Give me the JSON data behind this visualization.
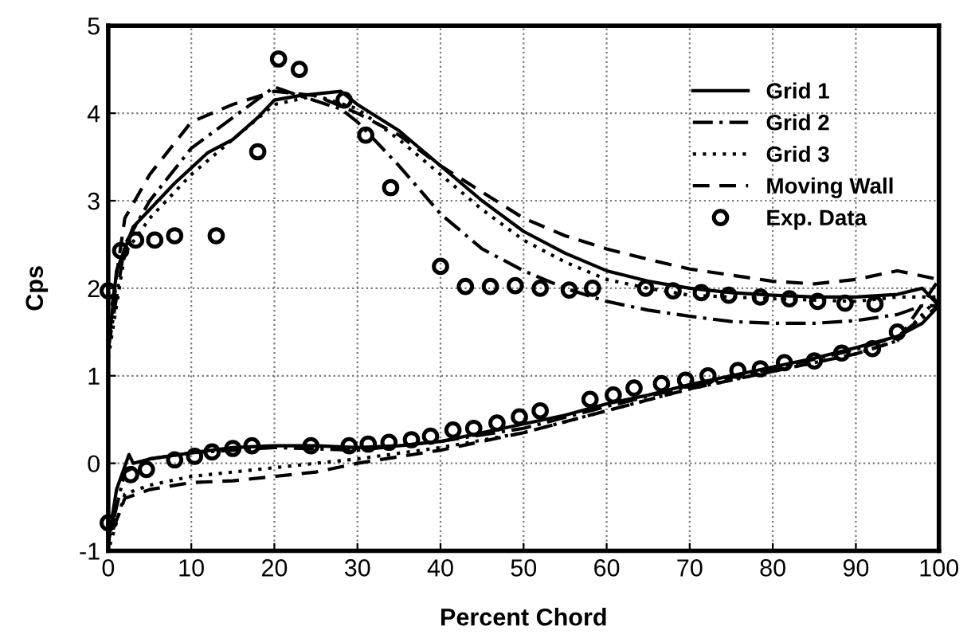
{
  "chart_data": {
    "type": "line",
    "xlabel": "Percent Chord",
    "ylabel": "Cps",
    "xlim": [
      0,
      100
    ],
    "ylim": [
      -1,
      5
    ],
    "xticks": [
      0,
      10,
      20,
      30,
      40,
      50,
      60,
      70,
      80,
      90,
      100
    ],
    "yticks": [
      -1,
      0,
      1,
      2,
      3,
      4,
      5
    ],
    "grid": true,
    "legend": "top right",
    "series": [
      {
        "name": "Grid 1",
        "color": "#000000",
        "line_style": "solid",
        "x": [
          0,
          1,
          3,
          5,
          8,
          12,
          15,
          18,
          20,
          23,
          28,
          30,
          35,
          40,
          45,
          50,
          55,
          60,
          65,
          70,
          75,
          80,
          85,
          90,
          95,
          98,
          100,
          98,
          95,
          90,
          85,
          80,
          75,
          70,
          65,
          60,
          55,
          50,
          45,
          40,
          35,
          30,
          25,
          20,
          15,
          10,
          5,
          3,
          2.5,
          1,
          0
        ],
        "values": [
          1.3,
          2.2,
          2.7,
          2.9,
          3.2,
          3.55,
          3.7,
          3.95,
          4.15,
          4.2,
          4.25,
          4.1,
          3.8,
          3.4,
          3.0,
          2.65,
          2.4,
          2.2,
          2.08,
          2.0,
          1.95,
          1.92,
          1.9,
          1.9,
          1.93,
          2.0,
          1.8,
          1.6,
          1.45,
          1.32,
          1.2,
          1.1,
          1.0,
          0.9,
          0.78,
          0.68,
          0.55,
          0.45,
          0.35,
          0.25,
          0.2,
          0.18,
          0.2,
          0.2,
          0.18,
          0.12,
          0.05,
          0.0,
          0.1,
          -0.3,
          -0.9
        ]
      },
      {
        "name": "Grid 2",
        "color": "#000000",
        "line_style": "dashdot",
        "x": [
          0,
          2,
          5,
          10,
          15,
          20,
          23,
          28,
          30,
          35,
          40,
          45,
          50,
          55,
          60,
          65,
          70,
          75,
          80,
          85,
          90,
          95,
          98,
          100,
          95,
          90,
          80,
          70,
          60,
          50,
          40,
          30,
          20,
          10,
          5,
          2,
          0
        ],
        "values": [
          1.3,
          2.5,
          3.0,
          3.6,
          3.95,
          4.3,
          4.2,
          4.05,
          3.9,
          3.4,
          2.85,
          2.45,
          2.2,
          2.0,
          1.85,
          1.75,
          1.68,
          1.62,
          1.6,
          1.6,
          1.63,
          1.7,
          1.8,
          1.8,
          1.45,
          1.3,
          1.08,
          0.88,
          0.65,
          0.4,
          0.25,
          0.15,
          0.18,
          0.12,
          0.05,
          -0.1,
          -0.9
        ]
      },
      {
        "name": "Grid 3",
        "color": "#000000",
        "line_style": "dotted",
        "x": [
          0,
          2,
          5,
          10,
          15,
          20,
          25,
          30,
          35,
          40,
          45,
          50,
          55,
          60,
          65,
          70,
          80,
          90,
          95,
          100,
          95,
          90,
          80,
          70,
          60,
          50,
          40,
          30,
          20,
          10,
          5,
          2,
          0
        ],
        "values": [
          1.2,
          2.4,
          2.8,
          3.3,
          3.7,
          4.1,
          4.2,
          4.05,
          3.7,
          3.3,
          2.9,
          2.55,
          2.3,
          2.1,
          2.0,
          1.92,
          1.88,
          1.85,
          1.9,
          1.9,
          1.4,
          1.25,
          1.05,
          0.85,
          0.6,
          0.35,
          0.18,
          0.05,
          -0.05,
          -0.15,
          -0.25,
          -0.35,
          -1.0
        ]
      },
      {
        "name": "Moving Wall",
        "color": "#000000",
        "line_style": "dashed",
        "x": [
          0,
          2,
          5,
          10,
          15,
          20,
          25,
          30,
          35,
          40,
          45,
          50,
          55,
          60,
          65,
          70,
          75,
          80,
          85,
          90,
          95,
          100,
          95,
          90,
          80,
          70,
          60,
          50,
          40,
          30,
          25,
          20,
          15,
          10,
          5,
          2,
          0
        ],
        "values": [
          1.5,
          2.8,
          3.3,
          3.9,
          4.1,
          4.25,
          4.2,
          4.0,
          3.75,
          3.4,
          3.1,
          2.8,
          2.6,
          2.45,
          2.33,
          2.22,
          2.15,
          2.08,
          2.05,
          2.1,
          2.2,
          2.1,
          1.4,
          1.25,
          1.05,
          0.85,
          0.6,
          0.35,
          0.15,
          0.0,
          -0.1,
          -0.15,
          -0.2,
          -0.22,
          -0.3,
          -0.4,
          -0.9
        ]
      },
      {
        "name": "Exp. Data",
        "type": "scatter",
        "marker": "circle",
        "color": "#000000",
        "x": [
          0,
          1.5,
          3.3,
          5.6,
          8,
          13,
          18,
          20.5,
          23,
          28.4,
          31,
          34,
          40,
          43,
          46,
          49,
          52,
          55.5,
          58.3,
          64.7,
          68,
          71.4,
          74.7,
          78.5,
          82,
          85.4,
          88.7,
          92.3,
          0,
          2.7,
          4.6,
          8,
          10.4,
          12.5,
          15,
          17.3,
          24.4,
          29,
          31.3,
          33.8,
          36.5,
          38.8,
          41.5,
          44,
          46.8,
          49.5,
          52,
          58,
          60.8,
          63.3,
          66.6,
          69.5,
          72.2,
          75.8,
          78.5,
          81.4,
          85,
          88.3,
          92,
          95
        ],
        "values": [
          1.97,
          2.43,
          2.55,
          2.55,
          2.6,
          2.6,
          3.56,
          4.62,
          4.5,
          4.15,
          3.75,
          3.15,
          2.25,
          2.02,
          2.02,
          2.03,
          2.0,
          1.98,
          2.0,
          2.0,
          1.97,
          1.95,
          1.92,
          1.9,
          1.88,
          1.85,
          1.83,
          1.82,
          -0.68,
          -0.13,
          -0.07,
          0.04,
          0.08,
          0.13,
          0.17,
          0.2,
          0.2,
          0.2,
          0.22,
          0.24,
          0.27,
          0.31,
          0.38,
          0.4,
          0.46,
          0.53,
          0.6,
          0.73,
          0.78,
          0.86,
          0.91,
          0.95,
          1.0,
          1.06,
          1.08,
          1.15,
          1.17,
          1.26,
          1.31,
          1.5
        ]
      }
    ]
  }
}
